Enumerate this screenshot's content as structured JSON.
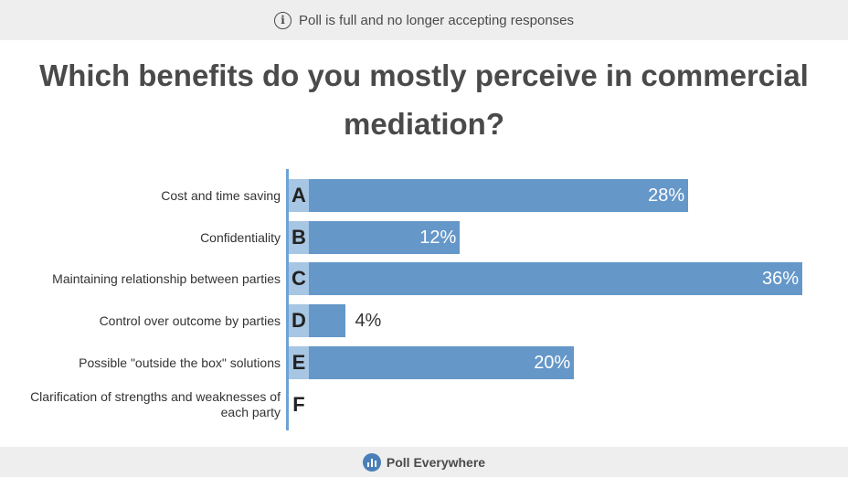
{
  "banner": {
    "text": "Poll is full and no longer accepting responses",
    "icon": "info-icon"
  },
  "question": "Which benefits do you mostly perceive in commercial mediation?",
  "colors": {
    "bar": "#6597c9",
    "letter_box": "#a6c6e3",
    "axis": "#6ea2d4"
  },
  "chart_data": {
    "type": "bar",
    "orientation": "horizontal",
    "categories": [
      "Cost and time saving",
      "Confidentiality",
      "Maintaining relationship between parties",
      "Control over outcome by parties",
      "Possible \"outside the box\" solutions",
      "Clarification of strengths and weaknesses of each party"
    ],
    "letters": [
      "A",
      "B",
      "C",
      "D",
      "E",
      "F"
    ],
    "values": [
      28,
      12,
      36,
      4,
      20,
      0
    ],
    "value_labels": [
      "28%",
      "12%",
      "36%",
      "4%",
      "20%",
      ""
    ],
    "unit": "%",
    "xlim": [
      0,
      36
    ],
    "grid": false
  },
  "footer": {
    "brand": "Poll Everywhere",
    "icon": "poll-everywhere-logo-icon"
  }
}
